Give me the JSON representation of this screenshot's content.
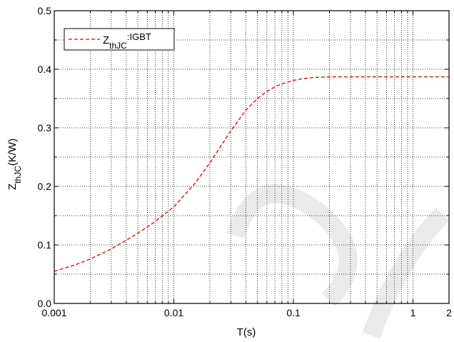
{
  "chart_data": {
    "type": "line",
    "xscale": "log",
    "xlim": [
      0.001,
      2
    ],
    "ylim": [
      0.0,
      0.5
    ],
    "grid": true,
    "grid_style": "dotted",
    "xlabel": "T(s)",
    "ylabel": {
      "main": "Z",
      "sub": "thJC",
      "rest": "(K/W)"
    },
    "xticks": [
      {
        "value": 0.001,
        "label": "0.001"
      },
      {
        "value": 0.01,
        "label": "0.01"
      },
      {
        "value": 0.1,
        "label": "0.1"
      },
      {
        "value": 1,
        "label": "1"
      },
      {
        "value": 2,
        "label": "2"
      }
    ],
    "yticks": [
      {
        "value": 0.0,
        "label": "0.0"
      },
      {
        "value": 0.1,
        "label": "0.1"
      },
      {
        "value": 0.2,
        "label": "0.2"
      },
      {
        "value": 0.3,
        "label": "0.3"
      },
      {
        "value": 0.4,
        "label": "0.4"
      },
      {
        "value": 0.5,
        "label": "0.5"
      }
    ],
    "legend": {
      "position": "top-left",
      "entries": [
        {
          "main": "Z",
          "sub": "thJC",
          "rest": ":IGBT"
        }
      ]
    },
    "series": [
      {
        "color": "#e00000",
        "dash": "dashed",
        "x": [
          0.001,
          0.0015,
          0.002,
          0.003,
          0.004,
          0.005,
          0.007,
          0.01,
          0.015,
          0.02,
          0.03,
          0.04,
          0.05,
          0.06,
          0.07,
          0.08,
          0.1,
          0.12,
          0.15,
          0.2,
          0.3,
          0.5,
          1,
          2
        ],
        "y": [
          0.055,
          0.066,
          0.076,
          0.093,
          0.108,
          0.12,
          0.14,
          0.165,
          0.205,
          0.24,
          0.295,
          0.33,
          0.35,
          0.362,
          0.37,
          0.375,
          0.381,
          0.384,
          0.386,
          0.387,
          0.387,
          0.387,
          0.387,
          0.387
        ]
      }
    ]
  }
}
